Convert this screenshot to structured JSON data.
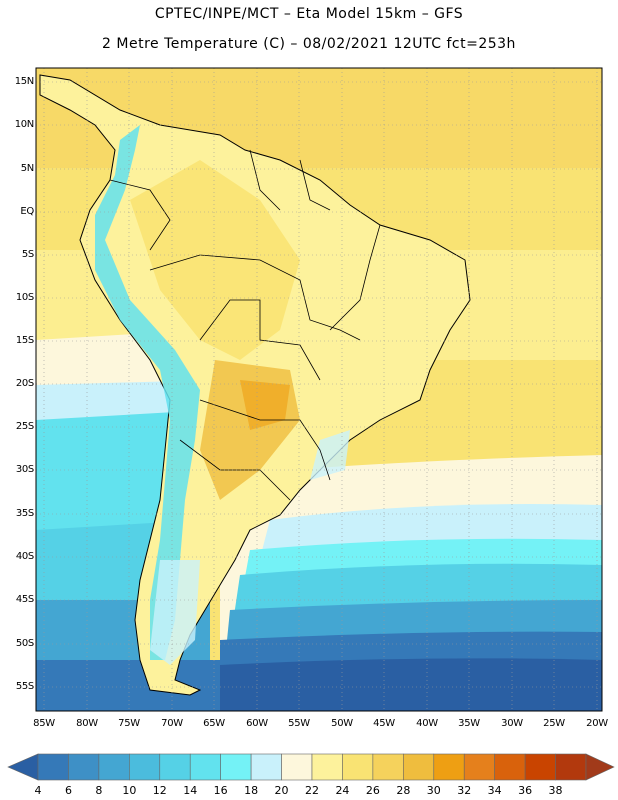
{
  "header": {
    "line1": "CPTEC/INPE/MCT –  Eta Model 15km – GFS",
    "line2": "2 Metre Temperature (C) – 08/02/2021 12UTC fct=253h"
  },
  "map": {
    "lat_labels": [
      "15N",
      "10N",
      "5N",
      "EQ",
      "5S",
      "10S",
      "15S",
      "20S",
      "25S",
      "30S",
      "35S",
      "40S",
      "45S",
      "50S",
      "55S"
    ],
    "lon_labels": [
      "85W",
      "80W",
      "75W",
      "70W",
      "65W",
      "60W",
      "55W",
      "50W",
      "45W",
      "40W",
      "35W",
      "30W",
      "25W",
      "20W"
    ],
    "grid": "dotted"
  },
  "colorbar": {
    "labels": [
      "4",
      "6",
      "8",
      "10",
      "12",
      "14",
      "16",
      "18",
      "20",
      "22",
      "24",
      "26",
      "28",
      "30",
      "32",
      "34",
      "36",
      "38"
    ],
    "colors": [
      "#2a5fa3",
      "#3579b8",
      "#3e90c6",
      "#44a6d2",
      "#4bbcdd",
      "#55d1e6",
      "#62e2ee",
      "#74f2f6",
      "#c9f1fb",
      "#fdf7dc",
      "#fdf29c",
      "#f9e373",
      "#f5d25c",
      "#efbd3e",
      "#ee9f13",
      "#e5801c",
      "#d9620c",
      "#c94400",
      "#b2390d",
      "#a13a1a"
    ]
  }
}
